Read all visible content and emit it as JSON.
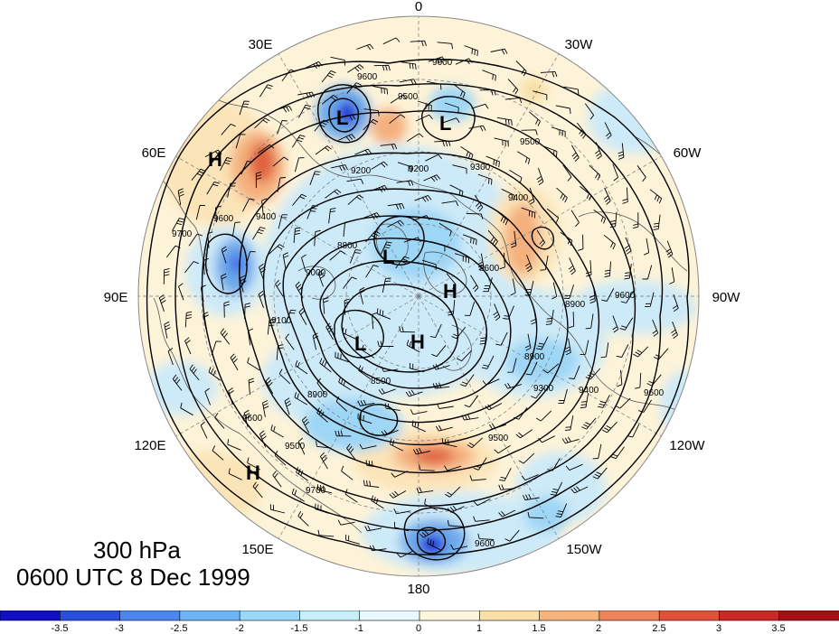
{
  "title": {
    "level": "300 hPa",
    "time": "0600 UTC 8 Dec 1999"
  },
  "longitude_labels": [
    "0",
    "30W",
    "60W",
    "90W",
    "120W",
    "150W",
    "180",
    "150E",
    "120E",
    "90E",
    "60E",
    "30E"
  ],
  "contour_labels": [
    "9600",
    "9600",
    "9500",
    "9500",
    "9300",
    "9200",
    "9200",
    "9400",
    "9400",
    "9700",
    "9600",
    "9000",
    "8800",
    "8600",
    "9100",
    "8900",
    "8500",
    "8900",
    "9300",
    "9400",
    "9600",
    "9500",
    "9600",
    "9700",
    "9600",
    "9500",
    "8900",
    "9600"
  ],
  "centers": [
    {
      "label": "L"
    },
    {
      "label": "L"
    },
    {
      "label": "H"
    },
    {
      "label": "L"
    },
    {
      "label": "H"
    },
    {
      "label": "L"
    },
    {
      "label": "H"
    },
    {
      "label": "H"
    }
  ],
  "colorbar": {
    "labels": [
      "-3.5",
      "-3",
      "-2.5",
      "-2",
      "-1.5",
      "-1",
      "0",
      "1",
      "1.5",
      "2",
      "2.5",
      "3",
      "3.5"
    ],
    "colors": [
      "#1010c8",
      "#2a4ee0",
      "#4a86ee",
      "#6cb4f4",
      "#9ad8f8",
      "#c8eefa",
      "#e8f8fc",
      "#fdf6dc",
      "#fae0a8",
      "#f6b47a",
      "#ee845a",
      "#e2503a",
      "#cc2828",
      "#a80e18"
    ]
  },
  "colors": {
    "cold_core": "#1a2fd6",
    "cold_mid": "#6eaaea",
    "cold_light": "#cdeaf8",
    "warm_light": "#fbecc8",
    "warm_mid": "#f4b07e",
    "warm_core": "#e0603e"
  }
}
